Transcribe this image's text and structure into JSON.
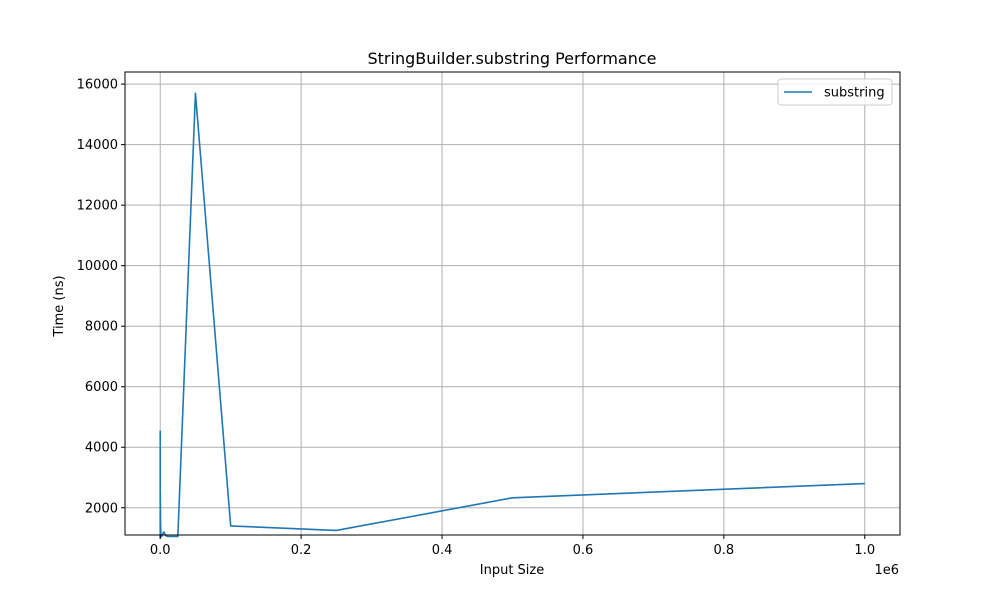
{
  "chart_data": {
    "type": "line",
    "title": "StringBuilder.substring Performance",
    "xlabel": "Input Size",
    "ylabel": "Time (ns)",
    "x_offset_label": "1e6",
    "xlim": [
      -0.05,
      1.05
    ],
    "ylim": [
      1100,
      16400
    ],
    "x_ticks": [
      0.0,
      0.2,
      0.4,
      0.6,
      0.8,
      1.0
    ],
    "x_tick_labels": [
      "0.0",
      "0.2",
      "0.4",
      "0.6",
      "0.8",
      "1.0"
    ],
    "y_ticks": [
      2000,
      4000,
      6000,
      8000,
      10000,
      12000,
      14000,
      16000
    ],
    "y_tick_labels": [
      "2000",
      "4000",
      "6000",
      "8000",
      "10000",
      "12000",
      "14000",
      "16000"
    ],
    "grid": true,
    "legend_position": "top-right",
    "series": [
      {
        "name": "substring",
        "color": "#1f77b4",
        "x": [
          0,
          1e-05,
          0.0001,
          0.0005,
          0.001,
          0.002,
          0.005,
          0.008,
          0.01,
          0.025,
          0.05,
          0.1,
          0.25,
          0.5,
          1.0
        ],
        "y": [
          4550,
          1000,
          2500,
          1450,
          1100,
          1050,
          1200,
          1080,
          1050,
          1050,
          15700,
          1400,
          1250,
          2330,
          2800
        ]
      }
    ]
  }
}
